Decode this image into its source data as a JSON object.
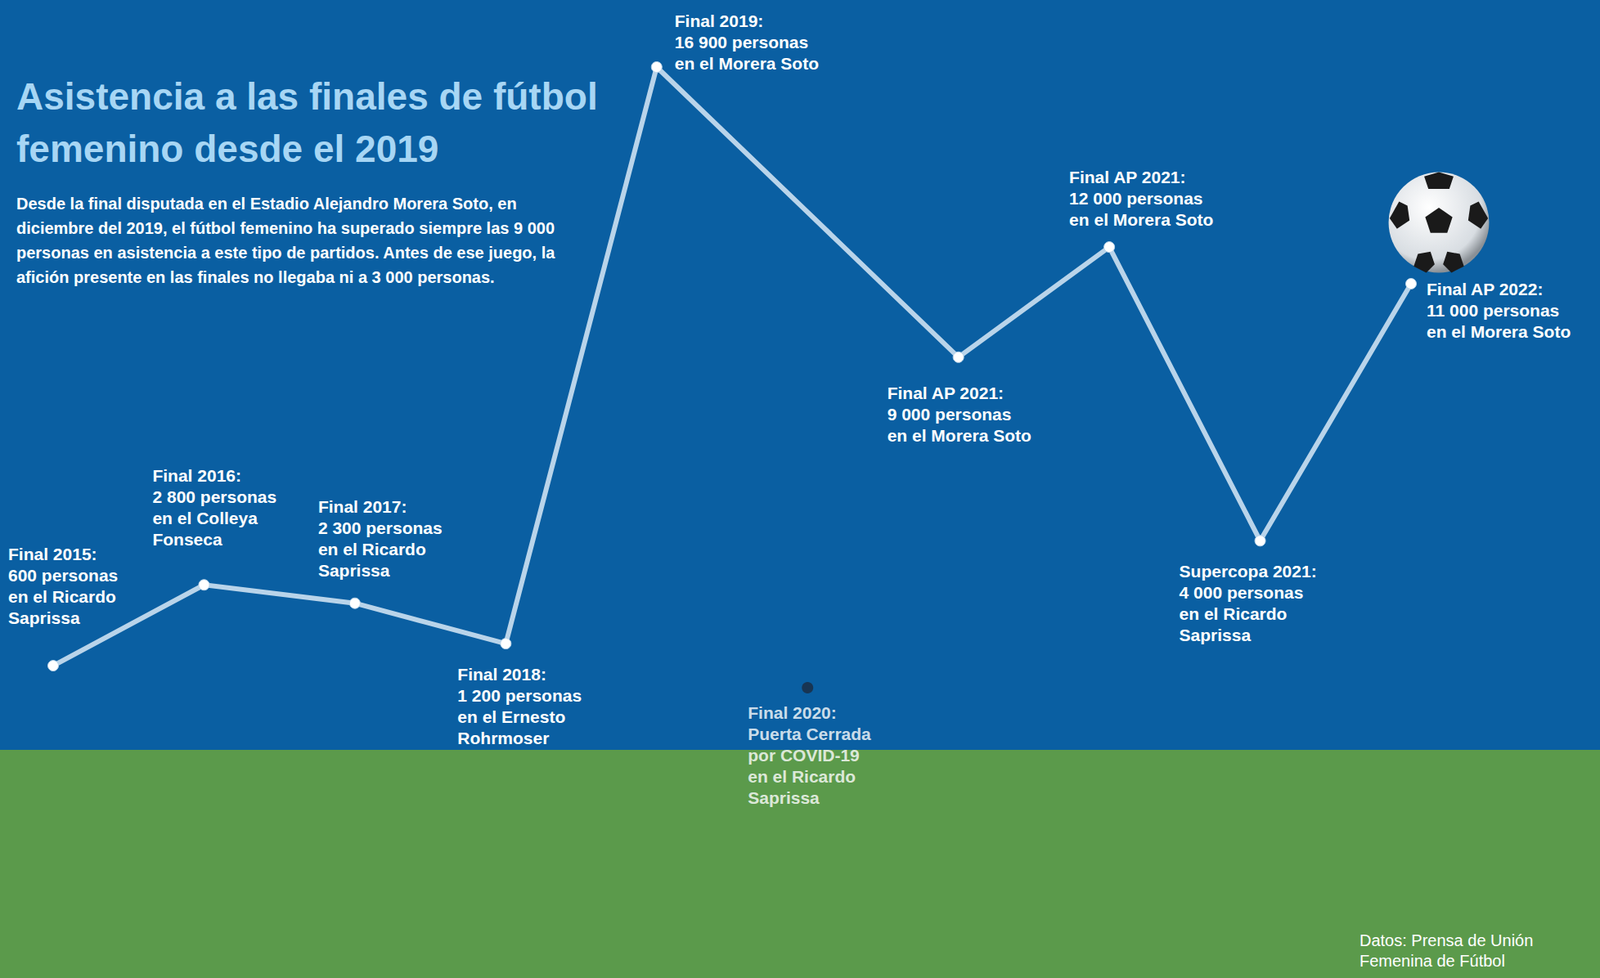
{
  "chart_data": {
    "type": "line",
    "title": "Asistencia a las finales de fútbol femenino desde el 2019",
    "subtitle": "Desde la final disputada en el Estadio Alejandro Morera Soto, en diciembre del 2019, el fútbol femenino ha superado siempre las 9 000 personas en asistencia a este tipo de partidos. Antes de ese juego, la afición presente en las finales no llegaba ni a 3 000 personas.",
    "source": "Datos: Prensa de Unión Femenina de Fútbol",
    "categories": [
      "Final 2015:",
      "Final 2016:",
      "Final 2017:",
      "Final 2018:",
      "Final 2019:",
      "Final 2020:",
      "Final AP 2021:",
      "Final AP 2021:",
      "Supercopa 2021:",
      "Final AP 2022:"
    ],
    "annotations": [
      [
        "600 personas",
        "en el Ricardo",
        "Saprissa"
      ],
      [
        "2 800 personas",
        "en el Colleya",
        "Fonseca"
      ],
      [
        "2 300 personas",
        "en el Ricardo",
        "Saprissa"
      ],
      [
        "1 200 personas",
        "en el Ernesto",
        "Rohrmoser"
      ],
      [
        "16 900 personas",
        "en el Morera Soto"
      ],
      [
        "Puerta Cerrada",
        "por COVID-19",
        "en el Ricardo",
        "Saprissa"
      ],
      [
        "9 000 personas",
        "en el Morera Soto"
      ],
      [
        "12 000 personas",
        "en el Morera Soto"
      ],
      [
        "4 000 personas",
        "en el Ricardo",
        "Saprissa"
      ],
      [
        "11 000 personas",
        "en el Morera Soto"
      ]
    ],
    "series": [
      {
        "type": "line",
        "color": "#b9d4ea",
        "marker": "circle",
        "line_style": "solid",
        "values": [
          600,
          2800,
          2300,
          1200,
          16900,
          null,
          9000,
          12000,
          4000,
          11000
        ]
      },
      {
        "type": "scatter",
        "color": "#1b2b40",
        "marker": "circle",
        "values": [
          null,
          null,
          null,
          null,
          null,
          0,
          null,
          null,
          null,
          null
        ]
      }
    ],
    "ylim": [
      0,
      16900
    ],
    "tick_labels": false,
    "grid": false
  }
}
